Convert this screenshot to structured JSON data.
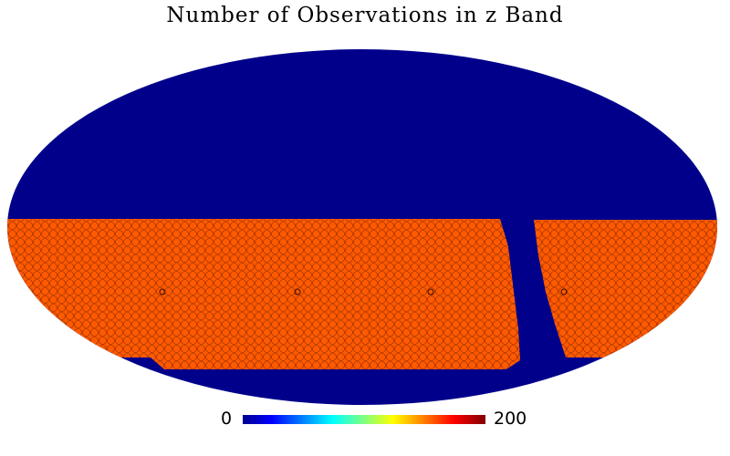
{
  "title": "Number of Observations in z Band",
  "colorbar": {
    "min_label": "0",
    "max_label": "200",
    "colormap": "jet"
  },
  "colors": {
    "background_sky": "#00008b",
    "observed_region": "#ff5a00",
    "tile_edge": "#8a2a00"
  },
  "map": {
    "projection": "Mollweide",
    "observed_value_approx": 170,
    "unobserved_value": 0
  }
}
